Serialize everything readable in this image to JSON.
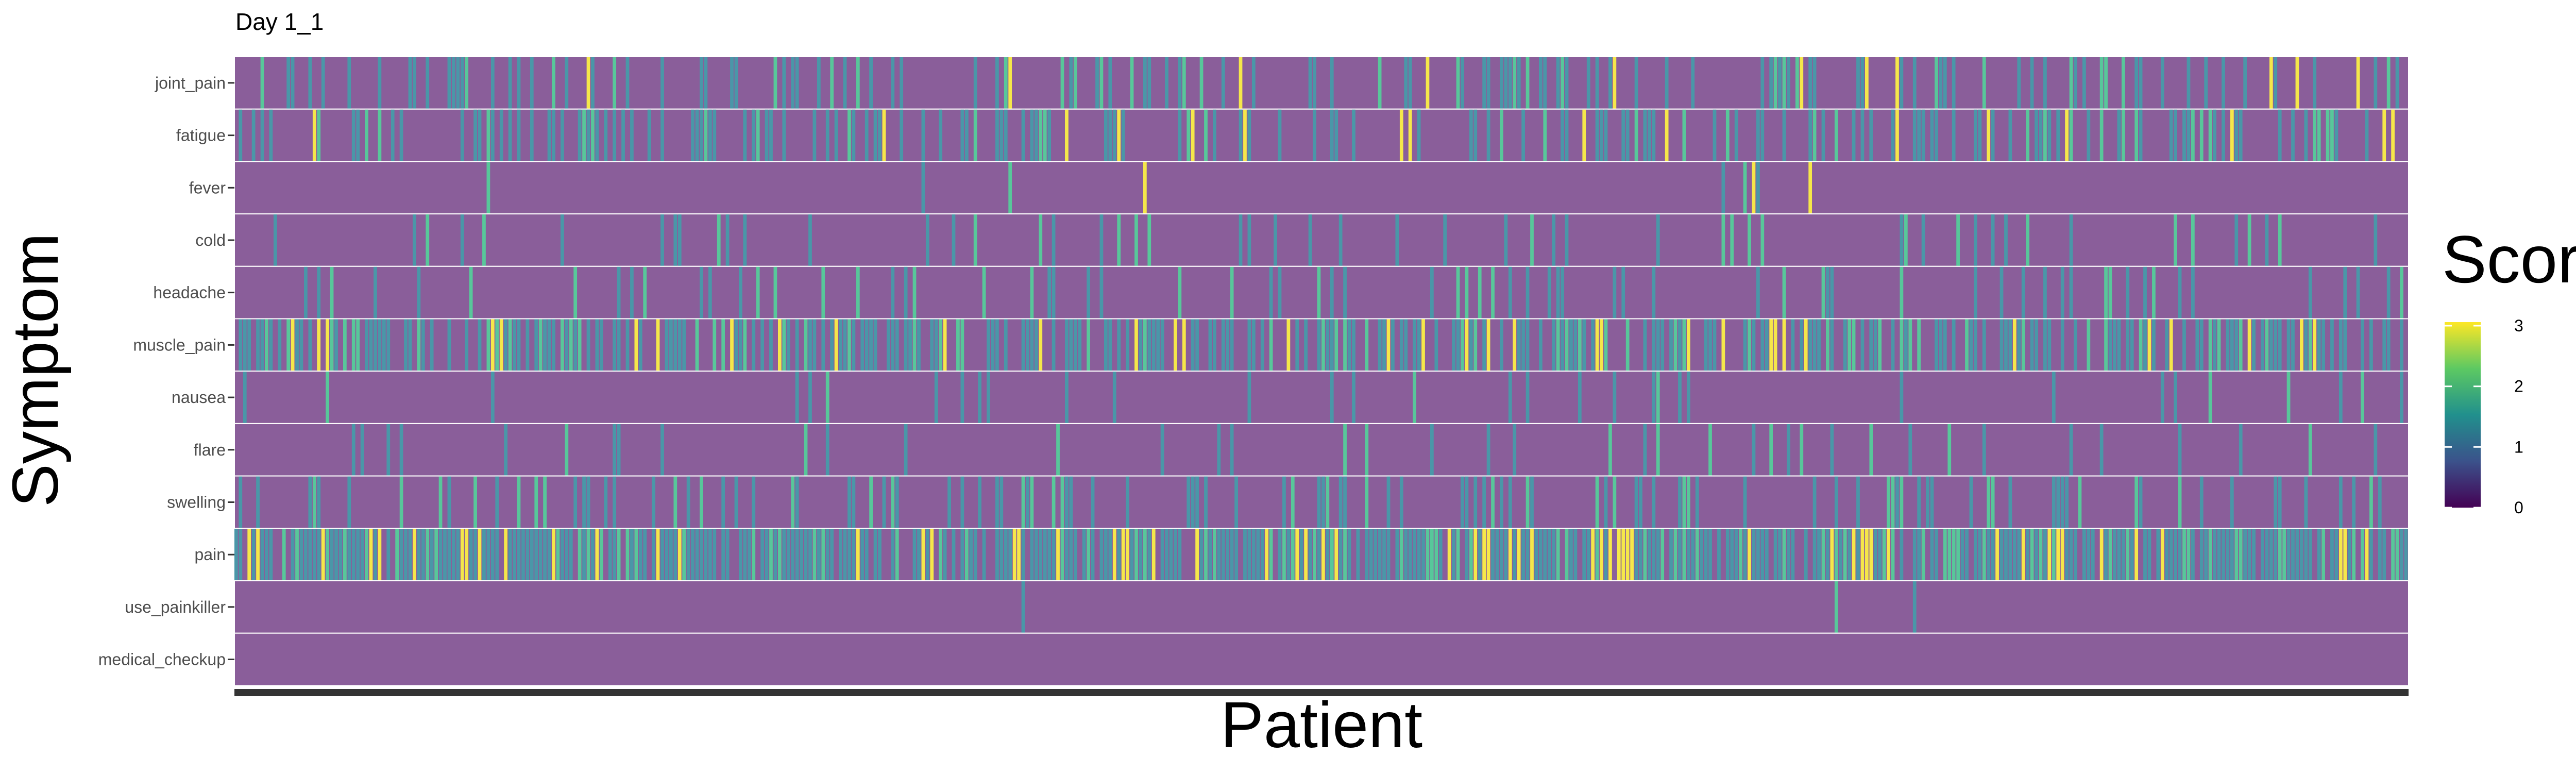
{
  "chart_data": {
    "type": "heatmap",
    "title": "Day 1_1",
    "xlabel": "Patient",
    "ylabel": "Symptom",
    "x_tick_labels": [],
    "y_categories": [
      "joint_pain",
      "fatigue",
      "fever",
      "cold",
      "headache",
      "muscle_pain",
      "nausea",
      "flare",
      "swelling",
      "pain",
      "use_painkiller",
      "medical_checkup"
    ],
    "n_patients": 500,
    "value_range": [
      0,
      3
    ],
    "colorscale": "viridis",
    "legend": {
      "title": "Score",
      "ticks": [
        "0",
        "1",
        "2",
        "3"
      ],
      "placement": "right"
    },
    "row_profiles": [
      {
        "symptom": "joint_pain",
        "mean_score": 0.35,
        "share_nonzero": 0.3,
        "max": 3
      },
      {
        "symptom": "fatigue",
        "mean_score": 0.4,
        "share_nonzero": 0.32,
        "max": 3
      },
      {
        "symptom": "fever",
        "mean_score": 0.01,
        "share_nonzero": 0.01,
        "max": 3
      },
      {
        "symptom": "cold",
        "mean_score": 0.12,
        "share_nonzero": 0.1,
        "max": 2
      },
      {
        "symptom": "headache",
        "mean_score": 0.18,
        "share_nonzero": 0.15,
        "max": 2
      },
      {
        "symptom": "muscle_pain",
        "mean_score": 0.8,
        "share_nonzero": 0.6,
        "max": 3
      },
      {
        "symptom": "nausea",
        "mean_score": 0.06,
        "share_nonzero": 0.05,
        "max": 2
      },
      {
        "symptom": "flare",
        "mean_score": 0.08,
        "share_nonzero": 0.07,
        "max": 2
      },
      {
        "symptom": "swelling",
        "mean_score": 0.25,
        "share_nonzero": 0.22,
        "max": 2
      },
      {
        "symptom": "pain",
        "mean_score": 1.1,
        "share_nonzero": 0.85,
        "max": 3
      },
      {
        "symptom": "use_painkiller",
        "mean_score": 0.01,
        "share_nonzero": 0.005,
        "max": 2
      },
      {
        "symptom": "medical_checkup",
        "mean_score": 0.0,
        "share_nonzero": 0.0,
        "max": 0
      }
    ],
    "grid": false
  },
  "colors": {
    "zero": "#8a5e9a",
    "low": "#6c74a6",
    "mid": "#4a97a8",
    "high": "#58c79a",
    "max": "#f5e74a",
    "cell_border": "#ffffff",
    "baseline": "#333333"
  }
}
